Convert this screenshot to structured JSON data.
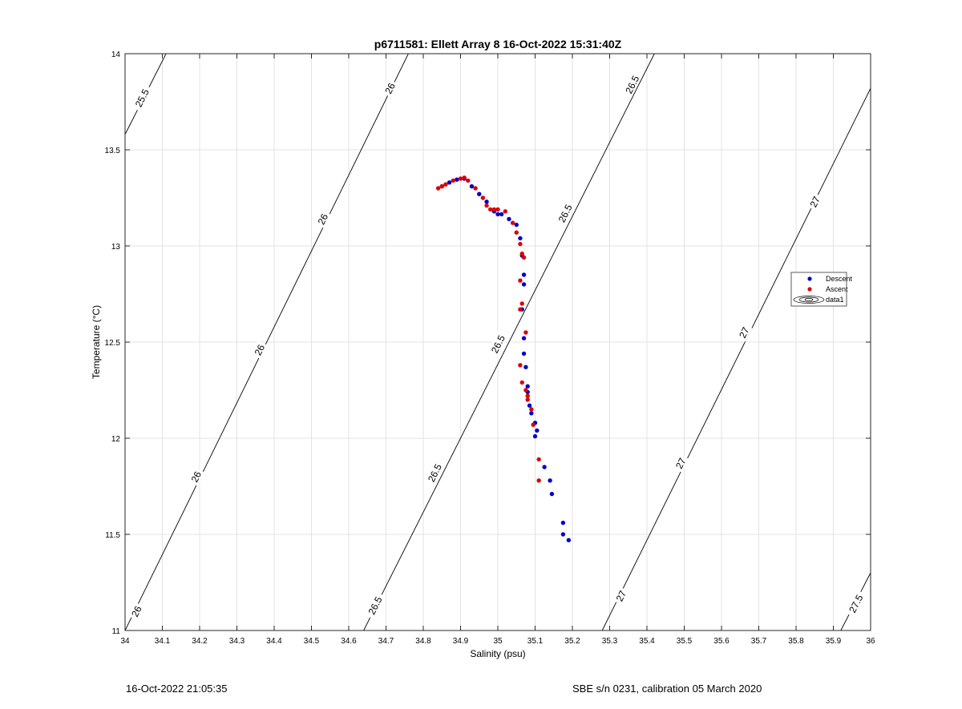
{
  "chart_data": {
    "type": "scatter",
    "title": "p6711581: Ellett Array 8 16-Oct-2022 15:31:40Z",
    "xlabel": "Salinity (psu)",
    "ylabel": "Temperature (°C)",
    "xlim": [
      34,
      36
    ],
    "ylim": [
      11,
      14
    ],
    "grid": true,
    "x_ticks": [
      "34",
      "34.1",
      "34.2",
      "34.3",
      "34.4",
      "34.5",
      "34.6",
      "34.7",
      "34.8",
      "34.9",
      "35",
      "35.1",
      "35.2",
      "35.3",
      "35.4",
      "35.5",
      "35.6",
      "35.7",
      "35.8",
      "35.9",
      "36"
    ],
    "y_ticks": [
      "11",
      "11.5",
      "12",
      "12.5",
      "13",
      "13.5",
      "14"
    ],
    "legend_position": "right",
    "legend": [
      {
        "label": "Descent",
        "color": "#0000cc",
        "marker": "dot"
      },
      {
        "label": "Ascent",
        "color": "#dd0000",
        "marker": "dot"
      },
      {
        "label": "data1",
        "color": "#000000",
        "marker": "contour"
      }
    ],
    "contours": [
      {
        "level": "25.5",
        "x": [
          34.0,
          34.11
        ],
        "y": [
          13.58,
          14.0
        ]
      },
      {
        "level": "26",
        "x": [
          34.0,
          34.76
        ],
        "y": [
          11.0,
          14.0
        ]
      },
      {
        "level": "26.5",
        "x": [
          34.64,
          35.42
        ],
        "y": [
          11.0,
          14.0
        ]
      },
      {
        "level": "27",
        "x": [
          35.28,
          36.0
        ],
        "y": [
          11.0,
          13.82
        ]
      },
      {
        "level": "27.5",
        "x": [
          35.92,
          36.0
        ],
        "y": [
          11.0,
          11.3
        ]
      }
    ],
    "contour_labels": [
      {
        "text": "25.5",
        "x": 34.045,
        "y": 13.77
      },
      {
        "text": "26",
        "x": 34.71,
        "y": 13.82
      },
      {
        "text": "26",
        "x": 34.53,
        "y": 13.14
      },
      {
        "text": "26",
        "x": 34.36,
        "y": 12.46
      },
      {
        "text": "26",
        "x": 34.19,
        "y": 11.8
      },
      {
        "text": "26",
        "x": 34.03,
        "y": 11.1
      },
      {
        "text": "26.5",
        "x": 35.36,
        "y": 13.84
      },
      {
        "text": "26.5",
        "x": 35.18,
        "y": 13.17
      },
      {
        "text": "26.5",
        "x": 35.0,
        "y": 12.49
      },
      {
        "text": "26.5",
        "x": 34.83,
        "y": 11.82
      },
      {
        "text": "26.5",
        "x": 34.67,
        "y": 11.13
      },
      {
        "text": "27",
        "x": 35.85,
        "y": 13.23
      },
      {
        "text": "27",
        "x": 35.66,
        "y": 12.55
      },
      {
        "text": "27",
        "x": 35.49,
        "y": 11.87
      },
      {
        "text": "27",
        "x": 35.33,
        "y": 11.18
      },
      {
        "text": "27.5",
        "x": 35.96,
        "y": 11.14
      }
    ],
    "series": [
      {
        "name": "Descent",
        "color": "#0000cc",
        "x": [
          34.85,
          34.87,
          34.89,
          34.91,
          34.93,
          34.95,
          34.97,
          34.99,
          35.0,
          35.01,
          35.03,
          35.05,
          35.06,
          35.065,
          35.07,
          35.07,
          35.065,
          35.07,
          35.07,
          35.075,
          35.08,
          35.08,
          35.085,
          35.09,
          35.1,
          35.1,
          35.105,
          35.125,
          35.14,
          35.145,
          35.175,
          35.175,
          35.19
        ],
        "y": [
          13.31,
          13.33,
          13.345,
          13.35,
          13.31,
          13.27,
          13.23,
          13.18,
          13.165,
          13.165,
          13.14,
          13.11,
          13.04,
          12.95,
          12.85,
          12.8,
          12.67,
          12.52,
          12.44,
          12.37,
          12.27,
          12.24,
          12.17,
          12.13,
          12.08,
          12.01,
          12.04,
          11.85,
          11.78,
          11.71,
          11.56,
          11.5,
          11.47
        ]
      },
      {
        "name": "Ascent",
        "color": "#dd0000",
        "x": [
          34.84,
          34.85,
          34.86,
          34.88,
          34.9,
          34.91,
          34.92,
          34.94,
          34.96,
          34.97,
          34.98,
          34.99,
          35.0,
          35.02,
          35.04,
          35.05,
          35.06,
          35.065,
          35.07,
          35.06,
          35.065,
          35.06,
          35.075,
          35.06,
          35.065,
          35.075,
          35.08,
          35.08,
          35.09,
          35.095,
          35.11,
          35.11
        ],
        "y": [
          13.3,
          13.31,
          13.32,
          13.34,
          13.35,
          13.355,
          13.34,
          13.3,
          13.25,
          13.21,
          13.19,
          13.19,
          13.19,
          13.18,
          13.12,
          13.07,
          13.01,
          12.96,
          12.94,
          12.82,
          12.7,
          12.67,
          12.55,
          12.38,
          12.29,
          12.25,
          12.22,
          12.2,
          12.15,
          12.07,
          11.89,
          11.78
        ]
      }
    ]
  },
  "footer": {
    "left": "16-Oct-2022 21:05:35",
    "right": "SBE s/n 0231, calibration 05 March 2020"
  }
}
